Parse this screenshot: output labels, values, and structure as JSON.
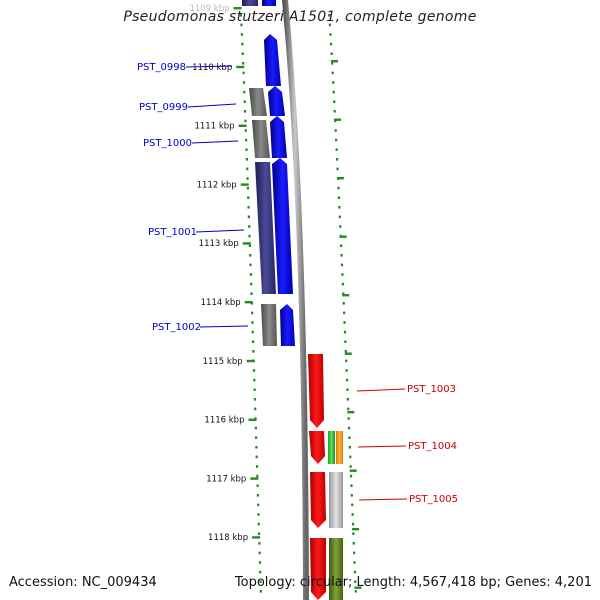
{
  "title": "Pseudomonas stutzeri A1501, complete genome",
  "footer": {
    "accession": "Accession: NC_009434",
    "stats": "Topology: circular; Length: 4,567,418 bp; Genes: 4,201"
  },
  "kbp_labels": [
    "1109 kbp",
    "1110 kbp",
    "1111 kbp",
    "1112 kbp",
    "1113 kbp",
    "1114 kbp",
    "1115 kbp",
    "1116 kbp",
    "1117 kbp",
    "1118 kbp"
  ],
  "genes_left": [
    "PST_0998",
    "PST_0999",
    "PST_1000",
    "PST_1001",
    "PST_1002"
  ],
  "genes_right": [
    "PST_1003",
    "PST_1004",
    "PST_1005"
  ],
  "colors": {
    "forward_gene": "#0000ff",
    "reverse_gene": "#ee0000",
    "neutral_gene": "#777777",
    "purple_gene": "#3a3a80",
    "green_ticks": "#228b22",
    "backbone": "#8a8a8a",
    "orange_gene": "#ff9900",
    "green_gene": "#33cc33",
    "olive_gene": "#5b7a1f",
    "light_gene": "#bbbbbb",
    "left_label": "#0000cc",
    "right_label": "#cc0000"
  }
}
